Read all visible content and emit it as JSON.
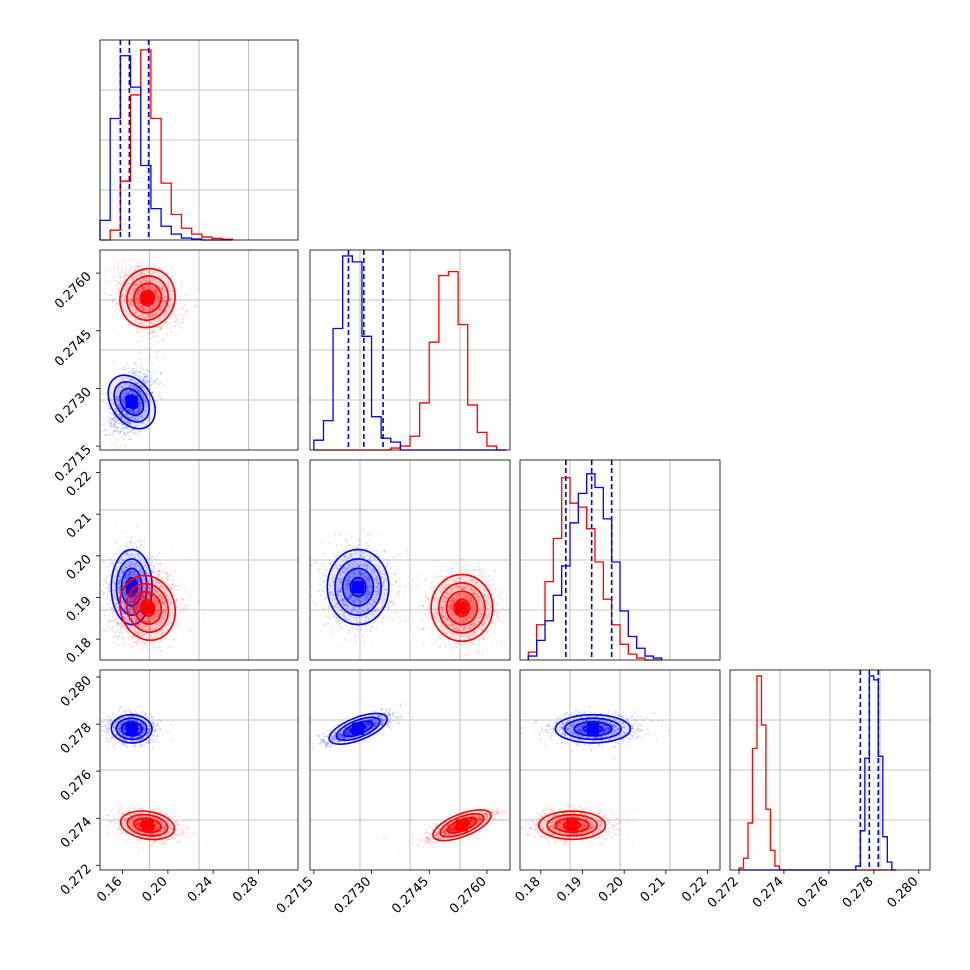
{
  "chart_data": {
    "type": "scatter",
    "colors": {
      "blue": "#0000ff",
      "red": "#ff0000"
    },
    "series": [
      {
        "color": "blue",
        "means": [
          0.168,
          0.27265,
          0.1925,
          0.2778
        ],
        "sds": [
          0.009,
          0.0004,
          0.0045,
          0.0003
        ],
        "quantiles": [
          [
            0.158,
            0.166,
            0.183
          ],
          [
            0.2724,
            0.2728,
            0.2733
          ],
          [
            0.186,
            0.1922,
            0.197
          ],
          [
            0.2774,
            0.2778,
            0.2782
          ]
        ]
      },
      {
        "color": "red",
        "means": [
          0.182,
          0.27535,
          0.1875,
          0.2737
        ],
        "sds": [
          0.012,
          0.0004,
          0.004,
          0.0003
        ]
      }
    ],
    "panels": [
      {
        "row": 0,
        "col": 0,
        "type": "histogram",
        "variable": 0,
        "xlim": [
          0.14,
          0.315
        ]
      },
      {
        "row": 1,
        "col": 0,
        "type": "scatter-contour",
        "xvar": 0,
        "yvar": 1,
        "xlim": [
          0.14,
          0.315
        ],
        "ylim": [
          0.2714,
          0.2766
        ],
        "yticks": [
          "0.2715",
          "0.2730",
          "0.2745",
          "0.2760"
        ]
      },
      {
        "row": 1,
        "col": 1,
        "type": "histogram",
        "variable": 1,
        "xlim": [
          0.2714,
          0.2766
        ]
      },
      {
        "row": 2,
        "col": 0,
        "type": "scatter-contour",
        "xvar": 0,
        "yvar": 2,
        "xlim": [
          0.14,
          0.315
        ],
        "ylim": [
          0.175,
          0.223
        ],
        "yticks": [
          "0.18",
          "0.19",
          "0.20",
          "0.21",
          "0.22"
        ]
      },
      {
        "row": 2,
        "col": 1,
        "type": "scatter-contour",
        "xvar": 1,
        "yvar": 2,
        "xlim": [
          0.2714,
          0.2766
        ],
        "ylim": [
          0.175,
          0.223
        ]
      },
      {
        "row": 2,
        "col": 2,
        "type": "histogram",
        "variable": 2,
        "xlim": [
          0.175,
          0.223
        ]
      },
      {
        "row": 3,
        "col": 0,
        "type": "scatter-contour",
        "xvar": 0,
        "yvar": 3,
        "xlim": [
          0.14,
          0.315
        ],
        "ylim": [
          0.2718,
          0.2803
        ],
        "yticks": [
          "0.272",
          "0.274",
          "0.276",
          "0.278",
          "0.280"
        ],
        "xticks": [
          "0.16",
          "0.20",
          "0.24",
          "0.28"
        ]
      },
      {
        "row": 3,
        "col": 1,
        "type": "scatter-contour",
        "xvar": 1,
        "yvar": 3,
        "xlim": [
          0.2714,
          0.2766
        ],
        "ylim": [
          0.2718,
          0.2803
        ],
        "xticks": [
          "0.2715",
          "0.2730",
          "0.2745",
          "0.2760"
        ]
      },
      {
        "row": 3,
        "col": 2,
        "type": "scatter-contour",
        "xvar": 2,
        "yvar": 3,
        "xlim": [
          0.175,
          0.223
        ],
        "ylim": [
          0.2718,
          0.2803
        ],
        "xticks": [
          "0.18",
          "0.19",
          "0.20",
          "0.21",
          "0.22"
        ]
      },
      {
        "row": 3,
        "col": 3,
        "type": "histogram",
        "variable": 3,
        "xlim": [
          0.2716,
          0.2805
        ],
        "xticks": [
          "0.272",
          "0.274",
          "0.276",
          "0.278",
          "0.280"
        ]
      }
    ],
    "histograms": [
      {
        "variable": 0,
        "bins": [
          0.14,
          0.149,
          0.158,
          0.167,
          0.176,
          0.185,
          0.194,
          0.203,
          0.212,
          0.221,
          0.23,
          0.239,
          0.248,
          0.257
        ],
        "blue": [
          0.1,
          0.62,
          0.94,
          0.78,
          0.38,
          0.16,
          0.07,
          0.03,
          0.01,
          0.005,
          0.0,
          0.0,
          0.0
        ],
        "red": [
          0.0,
          0.05,
          0.3,
          0.74,
          0.97,
          0.62,
          0.29,
          0.13,
          0.06,
          0.03,
          0.015,
          0.008,
          0.004
        ]
      },
      {
        "variable": 1,
        "bins": [
          0.2715,
          0.27175,
          0.272,
          0.27225,
          0.2725,
          0.27275,
          0.273,
          0.27325,
          0.2735,
          0.27375,
          0.274,
          0.27425,
          0.2745,
          0.27475,
          0.275,
          0.27525,
          0.2755,
          0.27575,
          0.276,
          0.27625,
          0.2765
        ],
        "blue": [
          0.05,
          0.15,
          0.62,
          0.99,
          0.96,
          0.58,
          0.17,
          0.06,
          0.04,
          0.0,
          0.0,
          0.0,
          0.0,
          0.0,
          0.0,
          0.0,
          0.0,
          0.0,
          0.0,
          0.0
        ],
        "red": [
          0.0,
          0.0,
          0.0,
          0.0,
          0.0,
          0.0,
          0.0,
          0.0,
          0.01,
          0.02,
          0.07,
          0.24,
          0.55,
          0.89,
          0.91,
          0.64,
          0.23,
          0.09,
          0.02,
          0.0
        ]
      },
      {
        "variable": 2,
        "bins": [
          0.177,
          0.179,
          0.181,
          0.183,
          0.185,
          0.187,
          0.189,
          0.191,
          0.193,
          0.195,
          0.197,
          0.199,
          0.201,
          0.203,
          0.205,
          0.207,
          0.209
        ],
        "blue": [
          0.02,
          0.1,
          0.2,
          0.33,
          0.48,
          0.7,
          0.85,
          0.95,
          0.88,
          0.72,
          0.5,
          0.25,
          0.12,
          0.06,
          0.02,
          0.01
        ],
        "red": [
          0.04,
          0.18,
          0.4,
          0.62,
          0.93,
          0.8,
          0.78,
          0.67,
          0.5,
          0.31,
          0.18,
          0.08,
          0.03,
          0.01,
          0.0,
          0.0
        ]
      },
      {
        "variable": 3,
        "bins": [
          0.272,
          0.2722,
          0.2724,
          0.2726,
          0.2728,
          0.273,
          0.2732,
          0.2734,
          0.2736,
          0.2738,
          0.274,
          0.2742,
          0.2744,
          0.2746,
          0.2748,
          0.275,
          0.2752,
          0.2754,
          0.2756,
          0.2758,
          0.276,
          0.2762,
          0.2764,
          0.2766,
          0.2768,
          0.277,
          0.2772,
          0.2774,
          0.2776,
          0.2778,
          0.278,
          0.2782,
          0.2784,
          0.2786,
          0.2788,
          0.279
        ],
        "blue": [
          0,
          0,
          0,
          0,
          0,
          0,
          0,
          0,
          0,
          0,
          0,
          0,
          0,
          0,
          0,
          0,
          0,
          0,
          0,
          0,
          0,
          0,
          0,
          0,
          0,
          0,
          0.02,
          0.2,
          0.57,
          0.99,
          0.97,
          0.58,
          0.17,
          0.04,
          0.0
        ],
        "red": [
          0.01,
          0.06,
          0.24,
          0.62,
          0.99,
          0.74,
          0.31,
          0.1,
          0.02,
          0.0,
          0,
          0,
          0,
          0,
          0,
          0,
          0,
          0,
          0,
          0,
          0,
          0,
          0,
          0,
          0,
          0,
          0,
          0,
          0,
          0,
          0,
          0,
          0,
          0,
          0
        ]
      }
    ]
  }
}
